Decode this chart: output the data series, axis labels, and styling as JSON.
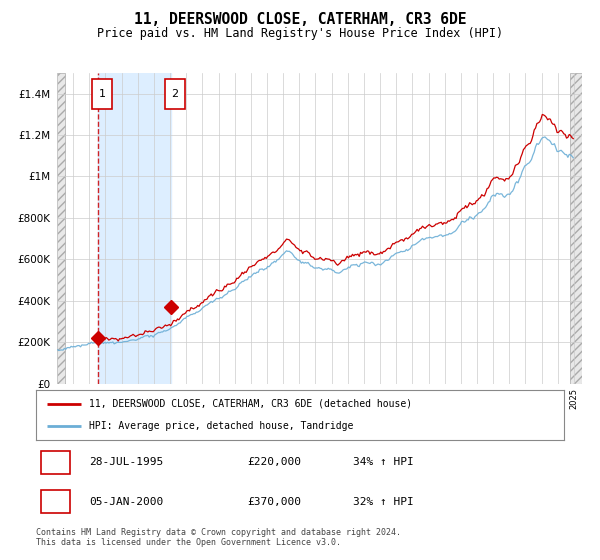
{
  "title": "11, DEERSWOOD CLOSE, CATERHAM, CR3 6DE",
  "subtitle": "Price paid vs. HM Land Registry's House Price Index (HPI)",
  "y_ticks": [
    0,
    200000,
    400000,
    600000,
    800000,
    1000000,
    1200000,
    1400000
  ],
  "y_tick_labels": [
    "£0",
    "£200K",
    "£400K",
    "£600K",
    "£800K",
    "£1M",
    "£1.2M",
    "£1.4M"
  ],
  "transaction1_date": "28-JUL-1995",
  "transaction1_price": 220000,
  "transaction1_label": "£220,000",
  "transaction1_hpi_pct": "34% ↑ HPI",
  "transaction2_date": "05-JAN-2000",
  "transaction2_price": 370000,
  "transaction2_label": "£370,000",
  "transaction2_hpi_pct": "32% ↑ HPI",
  "legend_line1": "11, DEERSWOOD CLOSE, CATERHAM, CR3 6DE (detached house)",
  "legend_line2": "HPI: Average price, detached house, Tandridge",
  "footer": "Contains HM Land Registry data © Crown copyright and database right 2024.\nThis data is licensed under the Open Government Licence v3.0.",
  "red_color": "#cc0000",
  "blue_color": "#6baed6",
  "shade_color": "#ddeeff",
  "grid_color": "#cccccc",
  "bg_color": "#ffffff",
  "hatch_color": "#d0d0d0",
  "x_min": 1993.0,
  "x_max": 2025.5,
  "y_min": 0,
  "y_max": 1500000,
  "marker1_year": 1995,
  "marker1_month": 7,
  "marker1_price": 220000,
  "marker2_year": 2000,
  "marker2_month": 1,
  "marker2_price": 370000
}
